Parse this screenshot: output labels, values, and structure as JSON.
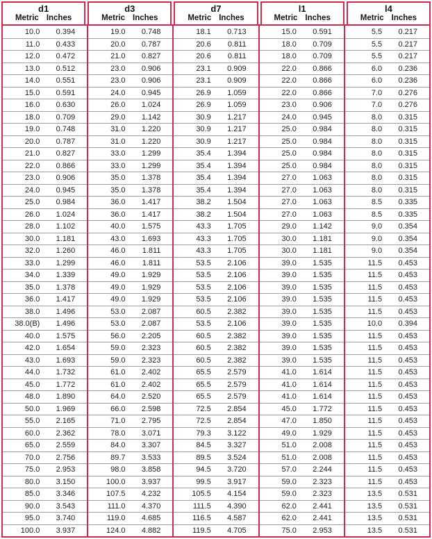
{
  "colors": {
    "border_red": "#cb2c4e",
    "row_line": "#9e9e9e",
    "text": "#1c1c1c"
  },
  "table": {
    "groups": [
      {
        "title": "d1",
        "metric_label": "Metric",
        "inches_label": "Inches"
      },
      {
        "title": "d3",
        "metric_label": "Metric",
        "inches_label": "Inches"
      },
      {
        "title": "d7",
        "metric_label": "Metric",
        "inches_label": "Inches"
      },
      {
        "title": "l1",
        "metric_label": "Metric",
        "inches_label": "Inches"
      },
      {
        "title": "l4",
        "metric_label": "Metric",
        "inches_label": "Inches"
      }
    ],
    "rows": [
      [
        "10.0",
        "0.394",
        "19.0",
        "0.748",
        "18.1",
        "0.713",
        "15.0",
        "0.591",
        "5.5",
        "0.217"
      ],
      [
        "11.0",
        "0.433",
        "20.0",
        "0.787",
        "20.6",
        "0.811",
        "18.0",
        "0.709",
        "5.5",
        "0.217"
      ],
      [
        "12.0",
        "0.472",
        "21.0",
        "0.827",
        "20.6",
        "0.811",
        "18.0",
        "0.709",
        "5.5",
        "0.217"
      ],
      [
        "13.0",
        "0.512",
        "23.0",
        "0.906",
        "23.1",
        "0.909",
        "22.0",
        "0.866",
        "6.0",
        "0.236"
      ],
      [
        "14.0",
        "0.551",
        "23.0",
        "0.906",
        "23.1",
        "0.909",
        "22.0",
        "0.866",
        "6.0",
        "0.236"
      ],
      [
        "15.0",
        "0.591",
        "24.0",
        "0.945",
        "26.9",
        "1.059",
        "22.0",
        "0.866",
        "7.0",
        "0.276"
      ],
      [
        "16.0",
        "0.630",
        "26.0",
        "1.024",
        "26.9",
        "1.059",
        "23.0",
        "0.906",
        "7.0",
        "0.276"
      ],
      [
        "18.0",
        "0.709",
        "29.0",
        "1.142",
        "30.9",
        "1.217",
        "24.0",
        "0.945",
        "8.0",
        "0.315"
      ],
      [
        "19.0",
        "0.748",
        "31.0",
        "1.220",
        "30.9",
        "1.217",
        "25.0",
        "0.984",
        "8.0",
        "0.315"
      ],
      [
        "20.0",
        "0.787",
        "31.0",
        "1.220",
        "30.9",
        "1.217",
        "25.0",
        "0.984",
        "8.0",
        "0.315"
      ],
      [
        "21.0",
        "0.827",
        "33.0",
        "1.299",
        "35.4",
        "1.394",
        "25.0",
        "0.984",
        "8.0",
        "0.315"
      ],
      [
        "22.0",
        "0.866",
        "33.0",
        "1.299",
        "35.4",
        "1.394",
        "25.0",
        "0.984",
        "8.0",
        "0.315"
      ],
      [
        "23.0",
        "0.906",
        "35.0",
        "1.378",
        "35.4",
        "1.394",
        "27.0",
        "1.063",
        "8.0",
        "0.315"
      ],
      [
        "24.0",
        "0.945",
        "35.0",
        "1.378",
        "35.4",
        "1.394",
        "27.0",
        "1.063",
        "8.0",
        "0.315"
      ],
      [
        "25.0",
        "0.984",
        "36.0",
        "1.417",
        "38.2",
        "1.504",
        "27.0",
        "1.063",
        "8.5",
        "0.335"
      ],
      [
        "26.0",
        "1.024",
        "36.0",
        "1.417",
        "38.2",
        "1.504",
        "27.0",
        "1.063",
        "8.5",
        "0.335"
      ],
      [
        "28.0",
        "1.102",
        "40.0",
        "1.575",
        "43.3",
        "1.705",
        "29.0",
        "1.142",
        "9.0",
        "0.354"
      ],
      [
        "30.0",
        "1.181",
        "43.0",
        "1.693",
        "43.3",
        "1.705",
        "30.0",
        "1.181",
        "9.0",
        "0.354"
      ],
      [
        "32.0",
        "1.260",
        "46.0",
        "1.811",
        "43.3",
        "1.705",
        "30.0",
        "1.181",
        "9.0",
        "0.354"
      ],
      [
        "33.0",
        "1.299",
        "46.0",
        "1.811",
        "53.5",
        "2.106",
        "39.0",
        "1.535",
        "11.5",
        "0.453"
      ],
      [
        "34.0",
        "1.339",
        "49.0",
        "1.929",
        "53.5",
        "2.106",
        "39.0",
        "1.535",
        "11.5",
        "0.453"
      ],
      [
        "35.0",
        "1.378",
        "49.0",
        "1.929",
        "53.5",
        "2.106",
        "39.0",
        "1.535",
        "11.5",
        "0.453"
      ],
      [
        "36.0",
        "1.417",
        "49.0",
        "1.929",
        "53.5",
        "2.106",
        "39.0",
        "1.535",
        "11.5",
        "0.453"
      ],
      [
        "38.0",
        "1.496",
        "53.0",
        "2.087",
        "60.5",
        "2.382",
        "39.0",
        "1.535",
        "11.5",
        "0.453"
      ],
      [
        "38.0(B)",
        "1.496",
        "53.0",
        "2.087",
        "53.5",
        "2.106",
        "39.0",
        "1.535",
        "10.0",
        "0.394"
      ],
      [
        "40.0",
        "1.575",
        "56.0",
        "2.205",
        "60.5",
        "2.382",
        "39.0",
        "1.535",
        "11.5",
        "0.453"
      ],
      [
        "42.0",
        "1.654",
        "59.0",
        "2.323",
        "60.5",
        "2.382",
        "39.0",
        "1.535",
        "11.5",
        "0.453"
      ],
      [
        "43.0",
        "1.693",
        "59.0",
        "2.323",
        "60.5",
        "2.382",
        "39.0",
        "1.535",
        "11.5",
        "0.453"
      ],
      [
        "44.0",
        "1.732",
        "61.0",
        "2.402",
        "65.5",
        "2.579",
        "41.0",
        "1.614",
        "11.5",
        "0.453"
      ],
      [
        "45.0",
        "1.772",
        "61.0",
        "2.402",
        "65.5",
        "2.579",
        "41.0",
        "1.614",
        "11.5",
        "0.453"
      ],
      [
        "48.0",
        "1.890",
        "64.0",
        "2.520",
        "65.5",
        "2.579",
        "41.0",
        "1.614",
        "11.5",
        "0.453"
      ],
      [
        "50.0",
        "1.969",
        "66.0",
        "2.598",
        "72.5",
        "2.854",
        "45.0",
        "1.772",
        "11.5",
        "0.453"
      ],
      [
        "55.0",
        "2.165",
        "71.0",
        "2.795",
        "72.5",
        "2.854",
        "47.0",
        "1.850",
        "11.5",
        "0.453"
      ],
      [
        "60.0",
        "2.362",
        "78.0",
        "3.071",
        "79.3",
        "3.122",
        "49.0",
        "1.929",
        "11.5",
        "0.453"
      ],
      [
        "65.0",
        "2.559",
        "84.0",
        "3.307",
        "84.5",
        "3.327",
        "51.0",
        "2.008",
        "11.5",
        "0.453"
      ],
      [
        "70.0",
        "2.756",
        "89.7",
        "3.533",
        "89.5",
        "3.524",
        "51.0",
        "2.008",
        "11.5",
        "0.453"
      ],
      [
        "75.0",
        "2.953",
        "98.0",
        "3.858",
        "94.5",
        "3.720",
        "57.0",
        "2.244",
        "11.5",
        "0.453"
      ],
      [
        "80.0",
        "3.150",
        "100.0",
        "3.937",
        "99.5",
        "3.917",
        "59.0",
        "2.323",
        "11.5",
        "0.453"
      ],
      [
        "85.0",
        "3.346",
        "107.5",
        "4.232",
        "105.5",
        "4.154",
        "59.0",
        "2.323",
        "13.5",
        "0.531"
      ],
      [
        "90.0",
        "3.543",
        "111.0",
        "4.370",
        "111.5",
        "4.390",
        "62.0",
        "2.441",
        "13.5",
        "0.531"
      ],
      [
        "95.0",
        "3.740",
        "119.0",
        "4.685",
        "116.5",
        "4.587",
        "62.0",
        "2.441",
        "13.5",
        "0.531"
      ],
      [
        "100.0",
        "3.937",
        "124.0",
        "4.882",
        "119.5",
        "4.705",
        "75.0",
        "2.953",
        "13.5",
        "0.531"
      ]
    ]
  }
}
